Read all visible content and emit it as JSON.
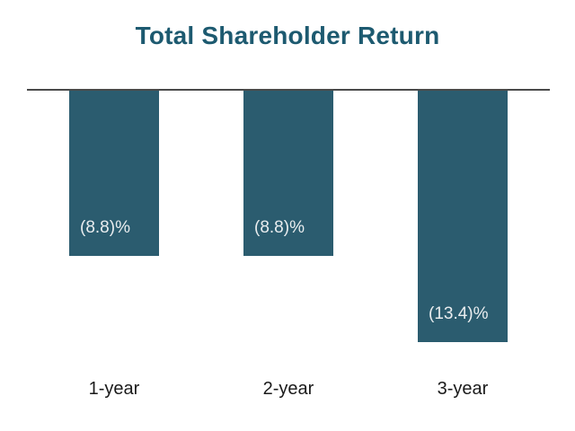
{
  "chart_data": {
    "type": "bar",
    "title": "Total Shareholder Return",
    "categories": [
      "1-year",
      "2-year",
      "3-year"
    ],
    "values": [
      -8.8,
      -8.8,
      -13.4
    ],
    "value_labels": [
      "(8.8)%",
      "(8.8)%",
      "(13.4)%"
    ],
    "xlabel": "",
    "ylabel": "",
    "ylim": [
      -13.4,
      0
    ],
    "grid": false,
    "legend": false,
    "orientation": "vertical-negative",
    "colors": {
      "bar": "#2b5c6f",
      "title": "#1d5a70",
      "baseline": "#4a4a4a",
      "value_label": "#e9edef",
      "category_label": "#1a1a1a"
    }
  }
}
